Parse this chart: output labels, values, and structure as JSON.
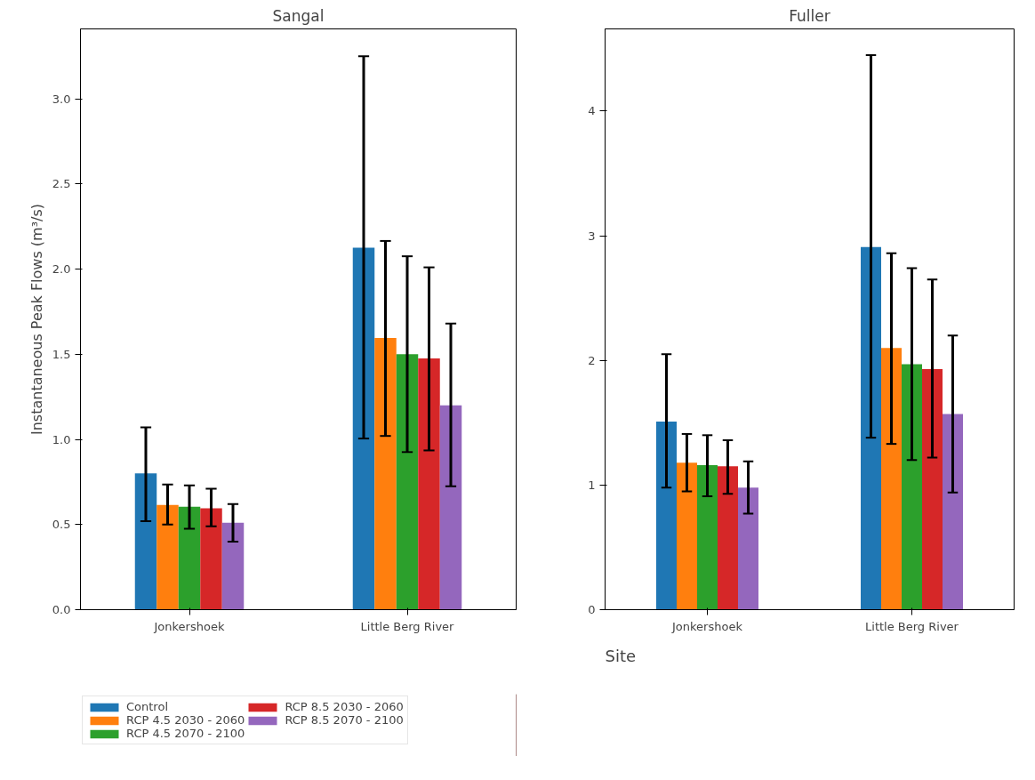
{
  "chart_data": [
    {
      "type": "bar",
      "title": "Sangal",
      "ylabel": "Instantaneous Peak Flows (m³/s)",
      "categories": [
        "Jonkershoek",
        "Little Berg River"
      ],
      "ylim": [
        0,
        3.41
      ],
      "yticks": [
        {
          "value": 0,
          "label": "0.0"
        },
        0.5,
        {
          "value": 1,
          "label": "1.0"
        },
        1.5,
        {
          "value": 2,
          "label": "2.0"
        },
        2.5,
        {
          "value": 3,
          "label": "3.0"
        }
      ],
      "legend": "bottom",
      "grid": false,
      "series": [
        {
          "name": "Control",
          "color": "#1f77b4",
          "values": [
            0.8,
            2.125
          ],
          "errors": [
            [
              0.52,
              1.07
            ],
            [
              1.005,
              3.25
            ]
          ]
        },
        {
          "name": "RCP 4.5 2030 - 2060",
          "color": "#ff7f0e",
          "values": [
            0.615,
            1.595
          ],
          "errors": [
            [
              0.5,
              0.735
            ],
            [
              1.02,
              2.165
            ]
          ]
        },
        {
          "name": "RCP 4.5 2070 - 2100",
          "color": "#2ca02c",
          "values": [
            0.605,
            1.5
          ],
          "errors": [
            [
              0.475,
              0.73
            ],
            [
              0.925,
              2.075
            ]
          ]
        },
        {
          "name": "RCP 8.5 2030 - 2060",
          "color": "#d62728",
          "values": [
            0.595,
            1.475
          ],
          "errors": [
            [
              0.49,
              0.71
            ],
            [
              0.935,
              2.01
            ]
          ]
        },
        {
          "name": "RCP 8.5 2070 - 2100",
          "color": "#9467bd",
          "values": [
            0.51,
            1.2
          ],
          "errors": [
            [
              0.4,
              0.62
            ],
            [
              0.725,
              1.68
            ]
          ]
        }
      ]
    },
    {
      "type": "bar",
      "title": "Fuller",
      "xlabel": "Site",
      "categories": [
        "Jonkershoek",
        "Little Berg River"
      ],
      "ylim": [
        0,
        4.66
      ],
      "yticks": [
        0,
        1,
        2,
        3,
        4
      ],
      "grid": false,
      "series": [
        {
          "color": "#1f77b4",
          "values": [
            1.51,
            2.91
          ],
          "errors": [
            [
              0.98,
              2.05
            ],
            [
              1.38,
              4.45
            ]
          ]
        },
        {
          "color": "#ff7f0e",
          "values": [
            1.18,
            2.1
          ],
          "errors": [
            [
              0.95,
              1.41
            ],
            [
              1.33,
              2.86
            ]
          ]
        },
        {
          "color": "#2ca02c",
          "values": [
            1.16,
            1.97
          ],
          "errors": [
            [
              0.91,
              1.4
            ],
            [
              1.2,
              2.74
            ]
          ]
        },
        {
          "color": "#d62728",
          "values": [
            1.15,
            1.93
          ],
          "errors": [
            [
              0.93,
              1.36
            ],
            [
              1.22,
              2.65
            ]
          ]
        },
        {
          "color": "#9467bd",
          "values": [
            0.98,
            1.57
          ],
          "errors": [
            [
              0.77,
              1.19
            ],
            [
              0.94,
              2.2
            ]
          ]
        }
      ]
    }
  ]
}
